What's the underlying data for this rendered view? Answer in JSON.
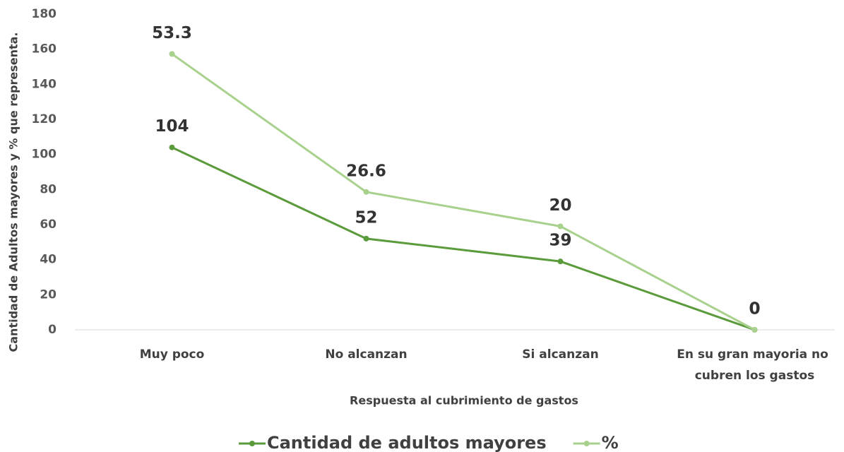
{
  "chart_data": {
    "type": "line",
    "stacked": true,
    "x_label": "Respuesta al cubrimiento de gastos",
    "y_label": "Cantidad de Adultos mayores y %  que representa.",
    "categories": [
      "Muy poco",
      "No alcanzan",
      "Si alcanzan",
      "En su gran mayoria no cubren los gastos"
    ],
    "series": [
      {
        "name": "Cantidad de adultos mayores",
        "color": "#5b9b3c",
        "values": [
          104,
          52,
          39,
          0
        ]
      },
      {
        "name": "%",
        "color": "#a9d18e",
        "values": [
          53.3,
          26.6,
          20,
          0
        ]
      }
    ],
    "ylim": [
      0,
      180
    ],
    "yticks": [
      0,
      20,
      40,
      60,
      80,
      100,
      120,
      140,
      160,
      180
    ],
    "legend": "bottom"
  }
}
